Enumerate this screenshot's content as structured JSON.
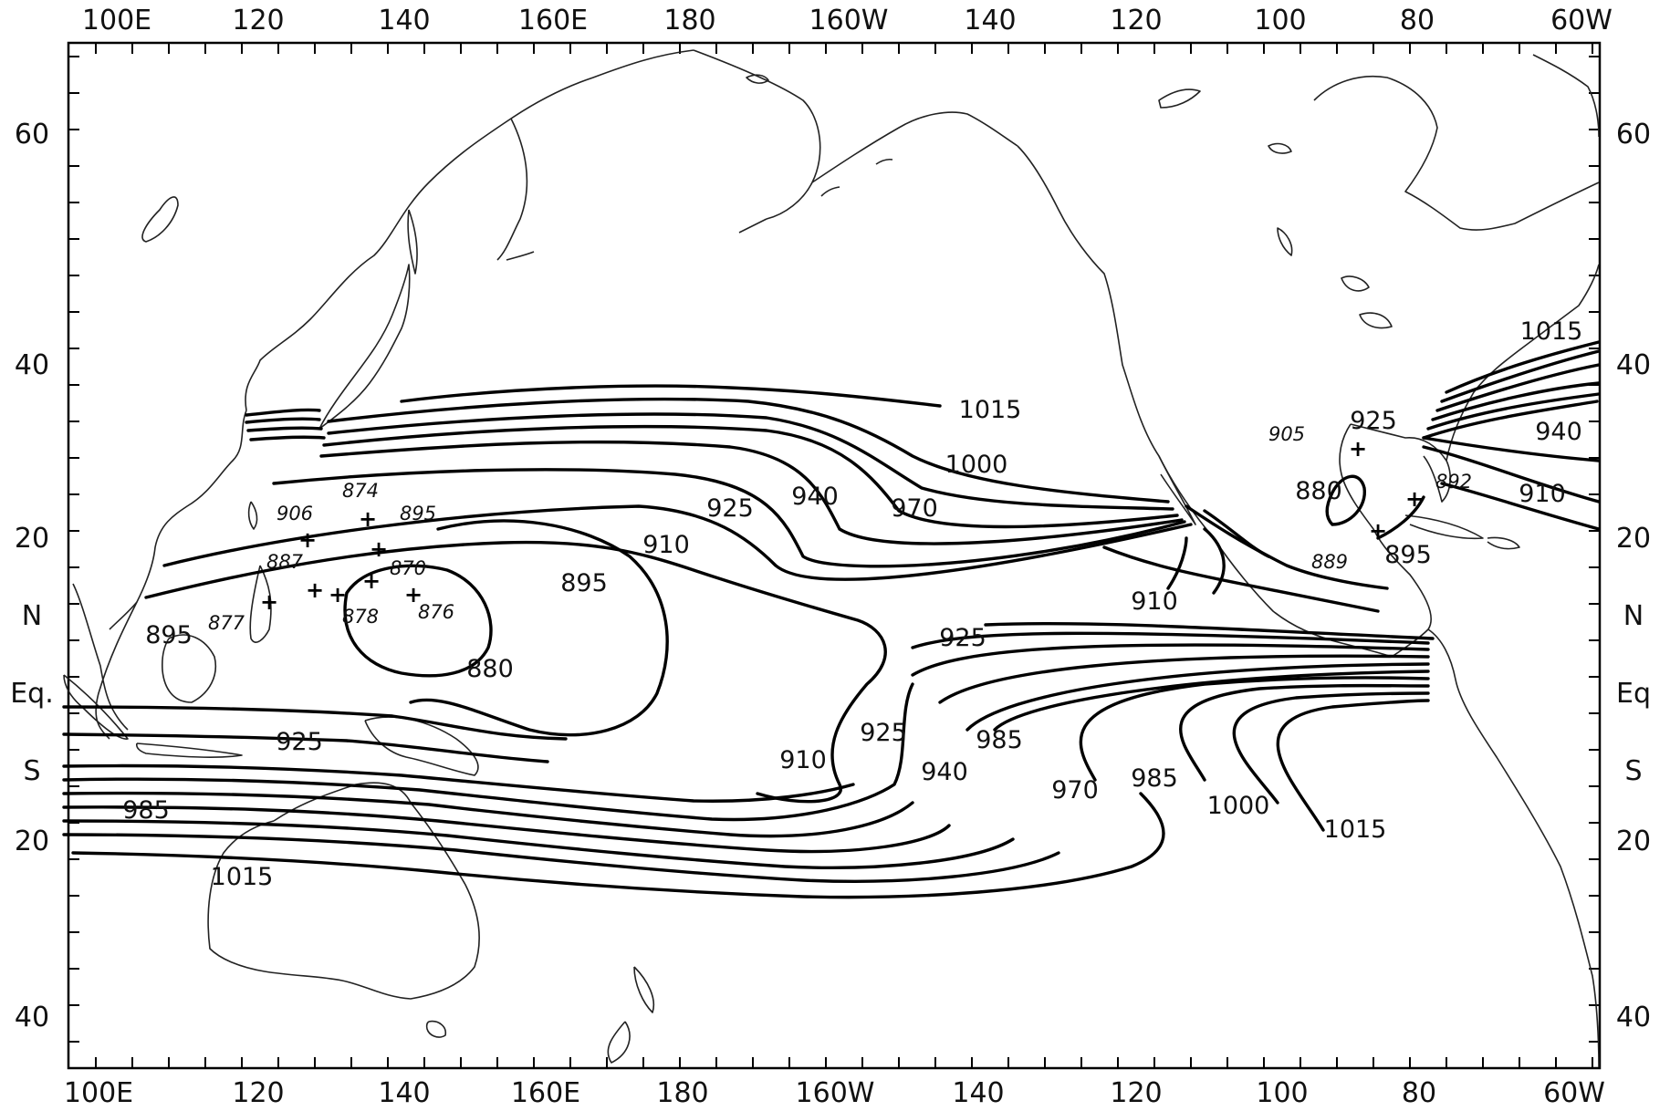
{
  "map": {
    "top_lon_labels": [
      "100E",
      "120",
      "140",
      "160E",
      "180",
      "160W",
      "140",
      "120",
      "100",
      "80",
      "60W"
    ],
    "bottom_lon_labels": [
      "100E",
      "120",
      "140",
      "160E",
      "180",
      "160W",
      "140",
      "120",
      "100",
      "80",
      "60W"
    ],
    "left_lat_labels": [
      "60",
      "40",
      "20",
      "N",
      "Eq.",
      "S",
      "20",
      "40"
    ],
    "right_lat_labels": [
      "60",
      "40",
      "20",
      "N",
      "Eq",
      "S",
      "20",
      "40"
    ],
    "isobar_labels": {
      "n1015": "1015",
      "n1000": "1000",
      "n970": "970",
      "n940": "940",
      "n925": "925",
      "n910": "910",
      "n895": "895",
      "n880": "880",
      "w895": "895",
      "w925": "925",
      "w985": "985",
      "w1015": "1015",
      "e910": "910",
      "e925a": "925",
      "e925b": "925",
      "e910b": "910",
      "e940": "940",
      "e985a": "985",
      "e970": "970",
      "e985b": "985",
      "e1000": "1000",
      "e1015": "1015",
      "atl1015": "1015",
      "atl925": "925",
      "atl940": "940",
      "atl910": "910",
      "gulf880": "880",
      "gulf895": "895"
    },
    "minima_labels": {
      "m906": "906",
      "m874": "874",
      "m895": "895",
      "m887": "887",
      "m870": "870",
      "m877": "877",
      "m878": "878",
      "m876": "876",
      "m905": "905",
      "m892": "892",
      "m889": "889"
    }
  }
}
